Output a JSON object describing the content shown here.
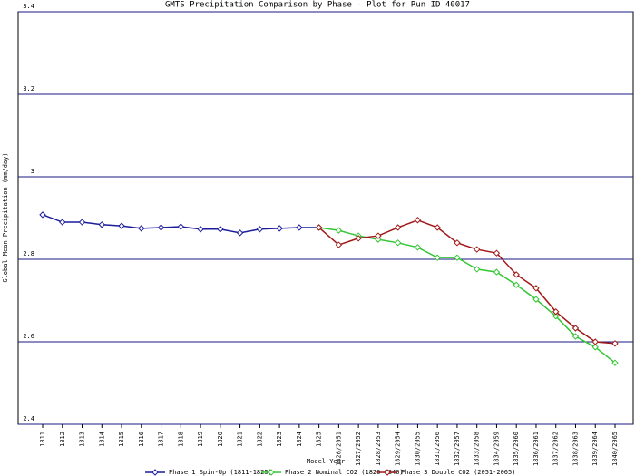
{
  "chart_data": {
    "type": "line",
    "title": "GMTS Precipitation Comparison by Phase - Plot for Run ID 40017",
    "x_label": "Model Year",
    "y_label": "Global Mean Precipitation (mm/day)",
    "categories": [
      "1811",
      "1812",
      "1813",
      "1814",
      "1815",
      "1816",
      "1817",
      "1818",
      "1819",
      "1820",
      "1821",
      "1822",
      "1823",
      "1824",
      "1825",
      "1826/2051",
      "1827/2052",
      "1828/2053",
      "1829/2054",
      "1830/2055",
      "1831/2056",
      "1832/2057",
      "1833/2058",
      "1834/2059",
      "1835/2060",
      "1836/2061",
      "1837/2062",
      "1838/2063",
      "1839/2064",
      "1840/2065"
    ],
    "series": [
      {
        "name": "Phase 1 Spin-Up (1811-1825)",
        "color": "#1c1c9c",
        "values": [
          2.908,
          2.89,
          2.89,
          2.884,
          2.881,
          2.875,
          2.877,
          2.879,
          2.873,
          2.873,
          2.864,
          2.873,
          2.875,
          2.877,
          2.877,
          null,
          null,
          null,
          null,
          null,
          null,
          null,
          null,
          null,
          null,
          null,
          null,
          null,
          null,
          null
        ]
      },
      {
        "name": "Phase 2 Nominal CO2 (1826-1840)",
        "color": "#33c633",
        "values": [
          null,
          null,
          null,
          null,
          null,
          null,
          null,
          null,
          null,
          null,
          null,
          null,
          null,
          null,
          2.877,
          2.87,
          2.857,
          2.848,
          2.84,
          2.829,
          2.804,
          2.804,
          2.776,
          2.769,
          2.738,
          2.703,
          2.662,
          2.613,
          2.587,
          2.549
        ]
      },
      {
        "name": "Phase 3 Double CO2 (2051-2065)",
        "color": "#a01818",
        "values": [
          null,
          null,
          null,
          null,
          null,
          null,
          null,
          null,
          null,
          null,
          null,
          null,
          null,
          null,
          2.877,
          2.835,
          2.851,
          2.857,
          2.877,
          2.895,
          2.877,
          2.84,
          2.824,
          2.815,
          2.763,
          2.73,
          2.673,
          2.633,
          2.6,
          2.596
        ]
      }
    ],
    "ylim": [
      2.4,
      3.4
    ],
    "yticks": [
      2.4,
      2.6,
      2.8,
      3,
      3.2,
      3.4
    ],
    "grid": true,
    "legend": "bottom"
  }
}
